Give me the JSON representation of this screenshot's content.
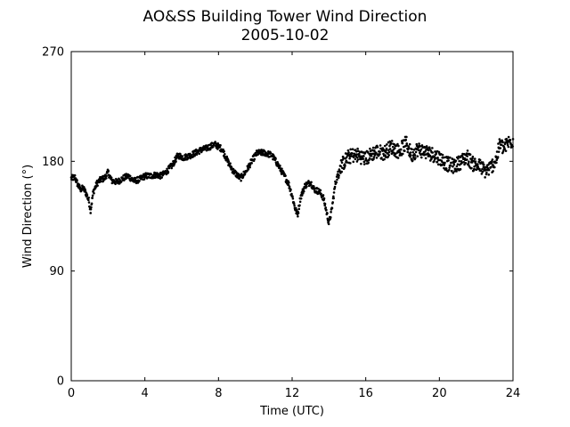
{
  "chart_data": {
    "type": "scatter",
    "title": "AO&SS Building Tower Wind Direction",
    "subtitle": "2005-10-02",
    "xlabel": "Time (UTC)",
    "ylabel": "Wind Direction (°)",
    "xlim": [
      0,
      24
    ],
    "ylim": [
      0,
      270
    ],
    "xticks": [
      0,
      4,
      8,
      12,
      16,
      20,
      24
    ],
    "yticks": [
      0,
      90,
      180,
      270
    ],
    "grid": false,
    "legend": "none",
    "marker_color": "#000000",
    "anchors": [
      [
        0.0,
        166
      ],
      [
        0.2,
        167
      ],
      [
        0.35,
        161
      ],
      [
        0.5,
        157
      ],
      [
        0.65,
        158
      ],
      [
        0.8,
        154
      ],
      [
        0.95,
        148
      ],
      [
        1.05,
        140
      ],
      [
        1.2,
        155
      ],
      [
        1.4,
        162
      ],
      [
        1.6,
        165
      ],
      [
        1.8,
        166
      ],
      [
        2.0,
        171
      ],
      [
        2.2,
        164
      ],
      [
        2.5,
        163
      ],
      [
        2.8,
        166
      ],
      [
        3.1,
        168
      ],
      [
        3.4,
        164
      ],
      [
        3.7,
        165
      ],
      [
        4.0,
        168
      ],
      [
        4.3,
        168
      ],
      [
        4.6,
        169
      ],
      [
        4.9,
        168
      ],
      [
        5.2,
        172
      ],
      [
        5.5,
        177
      ],
      [
        5.8,
        185
      ],
      [
        6.1,
        183
      ],
      [
        6.5,
        185
      ],
      [
        7.0,
        189
      ],
      [
        7.4,
        191
      ],
      [
        7.8,
        194
      ],
      [
        8.2,
        190
      ],
      [
        8.5,
        180
      ],
      [
        8.8,
        172
      ],
      [
        9.2,
        166
      ],
      [
        9.5,
        172
      ],
      [
        9.8,
        180
      ],
      [
        10.1,
        187
      ],
      [
        10.5,
        187
      ],
      [
        10.9,
        185
      ],
      [
        11.2,
        178
      ],
      [
        11.5,
        170
      ],
      [
        11.8,
        162
      ],
      [
        12.0,
        152
      ],
      [
        12.15,
        142
      ],
      [
        12.3,
        136
      ],
      [
        12.45,
        150
      ],
      [
        12.7,
        160
      ],
      [
        13.0,
        163
      ],
      [
        13.2,
        157
      ],
      [
        13.5,
        155
      ],
      [
        13.7,
        150
      ],
      [
        13.85,
        140
      ],
      [
        14.0,
        129
      ],
      [
        14.15,
        140
      ],
      [
        14.35,
        162
      ],
      [
        14.6,
        175
      ],
      [
        15.0,
        183
      ],
      [
        15.3,
        185
      ],
      [
        15.6,
        185
      ],
      [
        16.0,
        182
      ],
      [
        16.3,
        186
      ],
      [
        16.6,
        188
      ],
      [
        17.0,
        187
      ],
      [
        17.4,
        192
      ],
      [
        17.8,
        188
      ],
      [
        18.2,
        195
      ],
      [
        18.5,
        185
      ],
      [
        18.8,
        190
      ],
      [
        19.2,
        188
      ],
      [
        19.6,
        186
      ],
      [
        20.0,
        183
      ],
      [
        20.4,
        178
      ],
      [
        20.8,
        176
      ],
      [
        21.2,
        180
      ],
      [
        21.5,
        184
      ],
      [
        21.8,
        178
      ],
      [
        22.2,
        176
      ],
      [
        22.5,
        172
      ],
      [
        22.8,
        175
      ],
      [
        23.1,
        182
      ],
      [
        23.3,
        195
      ],
      [
        23.5,
        190
      ],
      [
        23.7,
        195
      ],
      [
        24.0,
        197
      ]
    ]
  }
}
